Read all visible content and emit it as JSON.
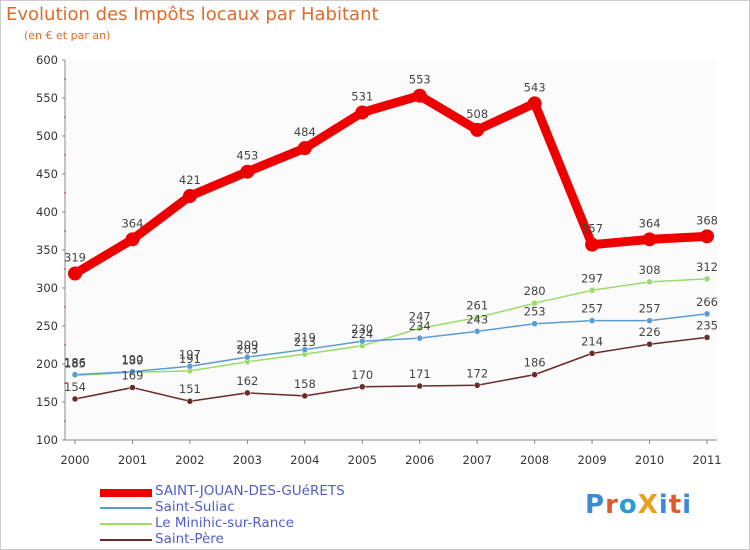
{
  "chart_data": {
    "type": "line",
    "title": "Evolution des Impôts locaux par Habitant",
    "subtitle": "(en € et par an)",
    "xlabel": "",
    "ylabel": "",
    "ylim": [
      100,
      600
    ],
    "yticks": [
      100,
      150,
      200,
      250,
      300,
      350,
      400,
      450,
      500,
      550,
      600
    ],
    "categories": [
      "2000",
      "2001",
      "2002",
      "2003",
      "2004",
      "2005",
      "2006",
      "2007",
      "2008",
      "2009",
      "2010",
      "2011"
    ],
    "series": [
      {
        "name": "SAINT-JOUAN-DES-GUéRETS",
        "color": "#ee0000",
        "values": [
          319,
          364,
          421,
          453,
          484,
          531,
          553,
          508,
          543,
          357,
          364,
          368
        ]
      },
      {
        "name": "Saint-Suliac",
        "color": "#5b9bd5",
        "values": [
          186,
          190,
          197,
          209,
          219,
          230,
          234,
          243,
          253,
          257,
          257,
          266
        ]
      },
      {
        "name": "Le Minihic-sur-Rance",
        "color": "#99dd66",
        "values": [
          185,
          189,
          191,
          203,
          213,
          224,
          247,
          261,
          280,
          297,
          308,
          312
        ]
      },
      {
        "name": "Saint-Père",
        "color": "#6b2a2a",
        "values": [
          154,
          169,
          151,
          162,
          158,
          170,
          171,
          172,
          186,
          214,
          226,
          235
        ]
      }
    ],
    "legend_position": "bottom-left",
    "grid": false
  },
  "logo": {
    "text": "ProXiti",
    "colors": [
      "#3c8ad8",
      "#e05a2a",
      "#2a9ad0",
      "#e8a020",
      "#3c8ad8",
      "#e05a2a",
      "#3c8ad8"
    ]
  }
}
